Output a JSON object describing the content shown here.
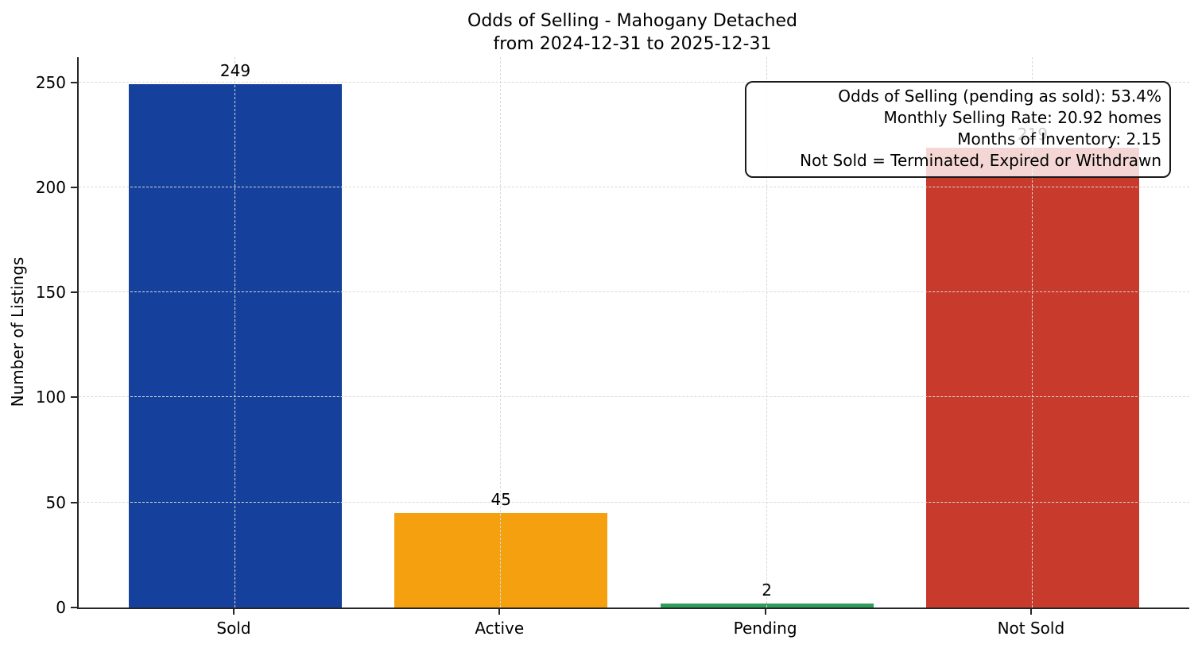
{
  "chart_data": {
    "type": "bar",
    "title": "Odds of Selling - Mahogany Detached",
    "subtitle": "from 2024-12-31 to 2025-12-31",
    "ylabel": "Number of Listings",
    "categories": [
      "Sold",
      "Active",
      "Pending",
      "Not Sold"
    ],
    "values": [
      249,
      45,
      2,
      219
    ],
    "bar_colors": [
      "#15419d",
      "#f5a10f",
      "#2e9e5b",
      "#c83b2c"
    ],
    "value_labels": [
      "249",
      "45",
      "2",
      "219"
    ],
    "value_label_hidden_behind_annotation": [
      false,
      false,
      false,
      true
    ],
    "yticks": [
      0,
      50,
      100,
      150,
      200,
      250
    ],
    "ylim": [
      0,
      262
    ],
    "grid": "dashed",
    "legend": "none",
    "annotation": {
      "lines": [
        "Odds of Selling (pending as sold): 53.4%",
        "Monthly Selling Rate: 20.92 homes",
        "Months of Inventory: 2.15",
        "Not Sold = Terminated, Expired or Withdrawn"
      ]
    },
    "colors": {
      "spine": "#262626",
      "gridline": "#d8d8d8",
      "text": "#000000",
      "annotation_border": "#1a1a1a"
    }
  }
}
